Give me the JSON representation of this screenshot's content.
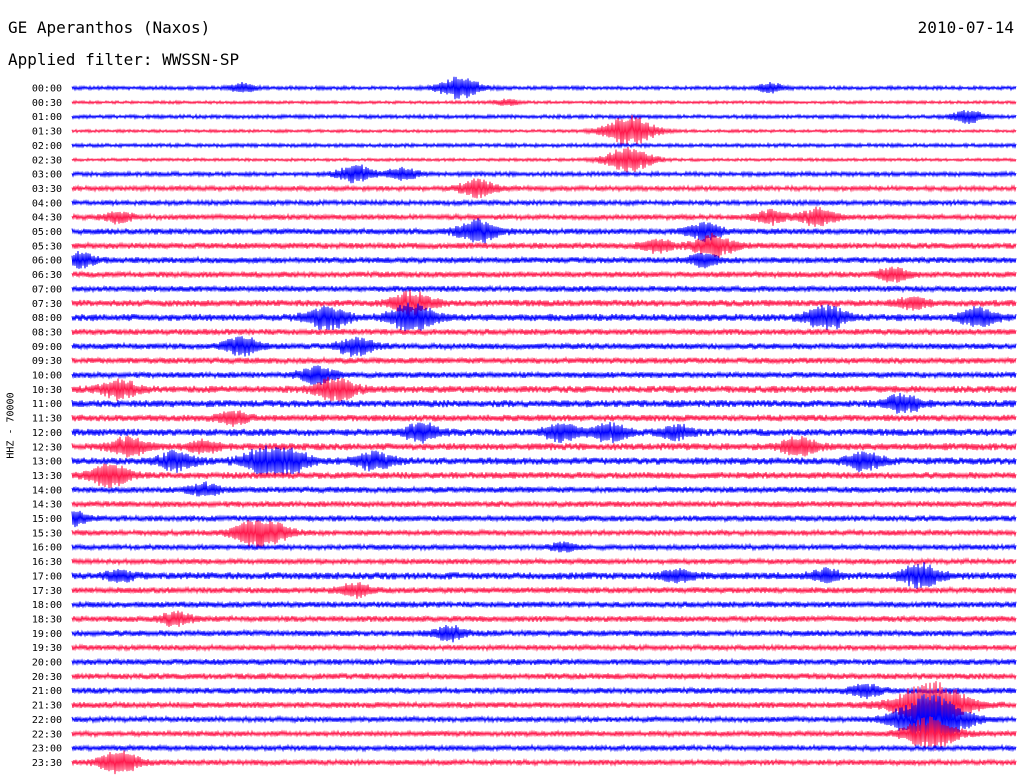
{
  "header": {
    "station": "GE Aperanthos (Naxos)",
    "date": "2010-07-14",
    "filter": "Applied filter: WWSSN-SP"
  },
  "chart_data": {
    "type": "line",
    "title": "GE Aperanthos (Naxos)",
    "subtitle": "Applied filter: WWSSN-SP",
    "ylabel": "HHZ - 70000",
    "xlabel": "",
    "colors": [
      "#0000ff",
      "#ff1a4d"
    ],
    "tick_labels": [
      "00:00",
      "00:30",
      "01:00",
      "01:30",
      "02:00",
      "02:30",
      "03:00",
      "03:30",
      "04:00",
      "04:30",
      "05:00",
      "05:30",
      "06:00",
      "06:30",
      "07:00",
      "07:30",
      "08:00",
      "08:30",
      "09:00",
      "09:30",
      "10:00",
      "10:30",
      "11:00",
      "11:30",
      "12:00",
      "12:30",
      "13:00",
      "13:30",
      "14:00",
      "14:30",
      "15:00",
      "15:30",
      "16:00",
      "16:30",
      "17:00",
      "17:30",
      "18:00",
      "18:30",
      "19:00",
      "19:30",
      "20:00",
      "20:30",
      "21:00",
      "21:30",
      "22:00",
      "22:30",
      "23:00",
      "23:30"
    ],
    "noise_levels": [
      1.5,
      1.2,
      1.5,
      1.2,
      1.5,
      1.2,
      1.8,
      2.0,
      2.0,
      2.2,
      2.5,
      2.5,
      2.5,
      2.5,
      2.5,
      2.8,
      3.0,
      2.5,
      2.5,
      2.5,
      2.5,
      3.0,
      3.0,
      2.8,
      3.0,
      3.0,
      3.0,
      2.8,
      2.5,
      2.5,
      2.5,
      2.2,
      2.2,
      2.2,
      3.0,
      2.5,
      2.5,
      2.5,
      2.5,
      2.2,
      2.5,
      2.5,
      2.5,
      2.5,
      2.2,
      2.2,
      2.2,
      2.2
    ],
    "events": [
      {
        "row": 0,
        "t": 0.18,
        "amp": 4
      },
      {
        "row": 0,
        "t": 0.41,
        "amp": 10
      },
      {
        "row": 0,
        "t": 0.74,
        "amp": 4
      },
      {
        "row": 1,
        "t": 0.46,
        "amp": 3
      },
      {
        "row": 2,
        "t": 0.95,
        "amp": 6
      },
      {
        "row": 3,
        "t": 0.59,
        "amp": 14
      },
      {
        "row": 5,
        "t": 0.59,
        "amp": 12
      },
      {
        "row": 6,
        "t": 0.3,
        "amp": 8
      },
      {
        "row": 6,
        "t": 0.35,
        "amp": 6
      },
      {
        "row": 7,
        "t": 0.43,
        "amp": 8
      },
      {
        "row": 9,
        "t": 0.05,
        "amp": 5
      },
      {
        "row": 9,
        "t": 0.74,
        "amp": 6
      },
      {
        "row": 9,
        "t": 0.79,
        "amp": 8
      },
      {
        "row": 10,
        "t": 0.43,
        "amp": 10
      },
      {
        "row": 10,
        "t": 0.67,
        "amp": 8
      },
      {
        "row": 11,
        "t": 0.62,
        "amp": 6
      },
      {
        "row": 11,
        "t": 0.68,
        "amp": 10
      },
      {
        "row": 12,
        "t": 0.01,
        "amp": 6
      },
      {
        "row": 12,
        "t": 0.67,
        "amp": 6
      },
      {
        "row": 13,
        "t": 0.87,
        "amp": 6
      },
      {
        "row": 15,
        "t": 0.36,
        "amp": 10
      },
      {
        "row": 15,
        "t": 0.89,
        "amp": 6
      },
      {
        "row": 16,
        "t": 0.27,
        "amp": 10
      },
      {
        "row": 16,
        "t": 0.36,
        "amp": 12
      },
      {
        "row": 16,
        "t": 0.8,
        "amp": 10
      },
      {
        "row": 16,
        "t": 0.96,
        "amp": 8
      },
      {
        "row": 18,
        "t": 0.18,
        "amp": 8
      },
      {
        "row": 18,
        "t": 0.3,
        "amp": 8
      },
      {
        "row": 20,
        "t": 0.26,
        "amp": 8
      },
      {
        "row": 21,
        "t": 0.05,
        "amp": 8
      },
      {
        "row": 21,
        "t": 0.28,
        "amp": 10
      },
      {
        "row": 22,
        "t": 0.88,
        "amp": 8
      },
      {
        "row": 23,
        "t": 0.17,
        "amp": 6
      },
      {
        "row": 24,
        "t": 0.37,
        "amp": 8
      },
      {
        "row": 24,
        "t": 0.52,
        "amp": 8
      },
      {
        "row": 24,
        "t": 0.57,
        "amp": 8
      },
      {
        "row": 24,
        "t": 0.64,
        "amp": 6
      },
      {
        "row": 25,
        "t": 0.06,
        "amp": 8
      },
      {
        "row": 25,
        "t": 0.14,
        "amp": 6
      },
      {
        "row": 25,
        "t": 0.77,
        "amp": 8
      },
      {
        "row": 26,
        "t": 0.11,
        "amp": 8
      },
      {
        "row": 26,
        "t": 0.2,
        "amp": 10
      },
      {
        "row": 26,
        "t": 0.23,
        "amp": 10
      },
      {
        "row": 26,
        "t": 0.32,
        "amp": 8
      },
      {
        "row": 26,
        "t": 0.84,
        "amp": 8
      },
      {
        "row": 27,
        "t": 0.04,
        "amp": 10
      },
      {
        "row": 28,
        "t": 0.14,
        "amp": 6
      },
      {
        "row": 30,
        "t": 0.0,
        "amp": 6
      },
      {
        "row": 31,
        "t": 0.2,
        "amp": 14
      },
      {
        "row": 32,
        "t": 0.52,
        "amp": 4
      },
      {
        "row": 34,
        "t": 0.05,
        "amp": 5
      },
      {
        "row": 34,
        "t": 0.64,
        "amp": 6
      },
      {
        "row": 34,
        "t": 0.8,
        "amp": 6
      },
      {
        "row": 34,
        "t": 0.9,
        "amp": 10
      },
      {
        "row": 35,
        "t": 0.3,
        "amp": 6
      },
      {
        "row": 37,
        "t": 0.11,
        "amp": 6
      },
      {
        "row": 38,
        "t": 0.4,
        "amp": 6
      },
      {
        "row": 42,
        "t": 0.84,
        "amp": 6
      },
      {
        "row": 43,
        "t": 0.91,
        "amp": 22
      },
      {
        "row": 44,
        "t": 0.91,
        "amp": 22
      },
      {
        "row": 45,
        "t": 0.91,
        "amp": 14
      },
      {
        "row": 47,
        "t": 0.05,
        "amp": 10
      }
    ]
  }
}
